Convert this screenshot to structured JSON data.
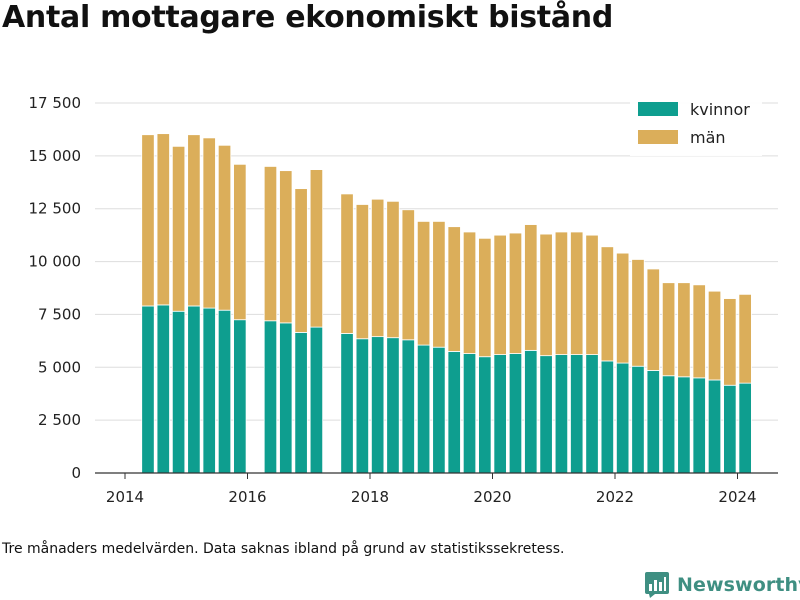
{
  "title": "Antal mottagare ekonomiskt bistånd",
  "footnote": "Tre månaders medelvärden. Data saknas ibland på grund av statistikssekretess.",
  "brand": {
    "name": "Newsworthy",
    "icon": "bar-chart-logo-icon"
  },
  "colors": {
    "kvinnor": "#0e9e8f",
    "man": "#dbae5a",
    "grid": "#dddddd",
    "axis": "#333333",
    "brand": "#3f8f82"
  },
  "chart_data": {
    "type": "bar",
    "stacked": true,
    "title": "Antal mottagare ekonomiskt bistånd",
    "xlabel": "",
    "ylabel": "",
    "ylim": [
      0,
      17500
    ],
    "xlim": [
      2013.6,
      2024.7
    ],
    "grid": true,
    "legend_position": "top-right",
    "y_ticks": [
      {
        "value": 0,
        "label": "0"
      },
      {
        "value": 2500,
        "label": "2 500"
      },
      {
        "value": 5000,
        "label": "5 000"
      },
      {
        "value": 7500,
        "label": "7 500"
      },
      {
        "value": 10000,
        "label": "10 000"
      },
      {
        "value": 12500,
        "label": "12 500"
      },
      {
        "value": 15000,
        "label": "15 000"
      },
      {
        "value": 17500,
        "label": "17 500"
      }
    ],
    "x_ticks": [
      {
        "value": 2014,
        "label": "2014"
      },
      {
        "value": 2016,
        "label": "2016"
      },
      {
        "value": 2018,
        "label": "2018"
      },
      {
        "value": 2020,
        "label": "2020"
      },
      {
        "value": 2022,
        "label": "2022"
      },
      {
        "value": 2024,
        "label": "2024"
      }
    ],
    "x": [
      2014.375,
      2014.625,
      2014.875,
      2015.125,
      2015.375,
      2015.625,
      2015.875,
      2016.375,
      2016.625,
      2016.875,
      2017.125,
      2017.625,
      2017.875,
      2018.125,
      2018.375,
      2018.625,
      2018.875,
      2019.125,
      2019.375,
      2019.625,
      2019.875,
      2020.125,
      2020.375,
      2020.625,
      2020.875,
      2021.125,
      2021.375,
      2021.625,
      2021.875,
      2022.125,
      2022.375,
      2022.625,
      2022.875,
      2023.125,
      2023.375,
      2023.625,
      2023.875,
      2024.125
    ],
    "series": [
      {
        "name": "kvinnor",
        "values": [
          7900,
          7950,
          7650,
          7900,
          7800,
          7700,
          7250,
          7200,
          7100,
          6650,
          6900,
          6600,
          6350,
          6450,
          6400,
          6300,
          6050,
          5950,
          5750,
          5650,
          5500,
          5600,
          5650,
          5800,
          5550,
          5600,
          5600,
          5600,
          5300,
          5200,
          5050,
          4850,
          4600,
          4550,
          4500,
          4400,
          4150,
          4250
        ]
      },
      {
        "name": "män",
        "values": [
          8100,
          8100,
          7800,
          8100,
          8050,
          7800,
          7350,
          7300,
          7200,
          6800,
          7450,
          6600,
          6350,
          6500,
          6450,
          6150,
          5850,
          5950,
          5900,
          5750,
          5600,
          5650,
          5700,
          5950,
          5750,
          5800,
          5800,
          5650,
          5400,
          5200,
          5050,
          4800,
          4400,
          4450,
          4400,
          4200,
          4100,
          4200
        ]
      }
    ]
  }
}
